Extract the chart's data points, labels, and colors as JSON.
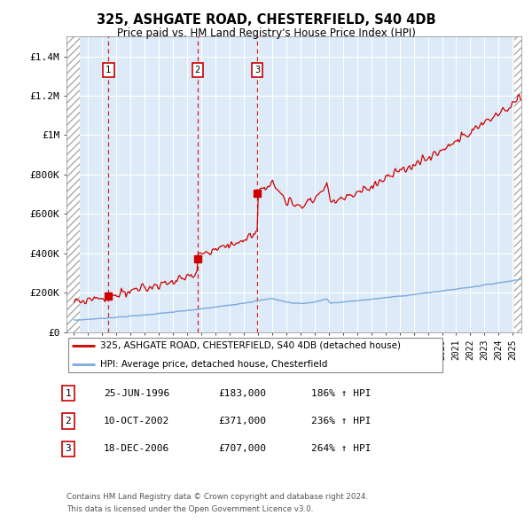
{
  "title1": "325, ASHGATE ROAD, CHESTERFIELD, S40 4DB",
  "title2": "Price paid vs. HM Land Registry's House Price Index (HPI)",
  "transaction_labels": [
    "25-JUN-1996",
    "10-OCT-2002",
    "18-DEC-2006"
  ],
  "transaction_prices_str": [
    "£183,000",
    "£371,000",
    "£707,000"
  ],
  "transaction_hpi_str": [
    "186% ↑ HPI",
    "236% ↑ HPI",
    "264% ↑ HPI"
  ],
  "legend_line1": "325, ASHGATE ROAD, CHESTERFIELD, S40 4DB (detached house)",
  "legend_line2": "HPI: Average price, detached house, Chesterfield",
  "footer1": "Contains HM Land Registry data © Crown copyright and database right 2024.",
  "footer2": "This data is licensed under the Open Government Licence v3.0.",
  "ylim": [
    0,
    1500000
  ],
  "yticks": [
    0,
    200000,
    400000,
    600000,
    800000,
    1000000,
    1200000,
    1400000
  ],
  "ytick_labels": [
    "£0",
    "£200K",
    "£400K",
    "£600K",
    "£800K",
    "£1M",
    "£1.2M",
    "£1.4M"
  ],
  "hpi_color": "#7aaadd",
  "price_color": "#cc0000",
  "dashed_color": "#cc0000",
  "box_color": "#cc0000",
  "bg_plot": "#ddeaf7",
  "grid_color": "#ffffff",
  "t1": 1996.46,
  "t2": 2002.75,
  "t3": 2006.96,
  "p1": 183000,
  "p2": 371000,
  "p3": 707000,
  "tx_labels": [
    "1",
    "2",
    "3"
  ]
}
